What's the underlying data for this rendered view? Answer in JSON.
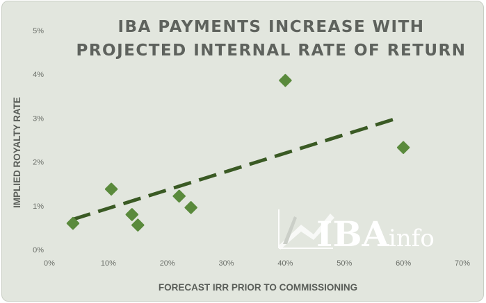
{
  "chart_data": {
    "type": "scatter",
    "title_lines": [
      "IBA PAYMENTS INCREASE WITH",
      "PROJECTED INTERNAL RATE OF RETURN"
    ],
    "xlabel": "FORECAST IRR PRIOR TO COMMISSIONING",
    "ylabel": "IMPLIED ROYALTY RATE",
    "xlim": [
      0,
      70
    ],
    "ylim": [
      0,
      5
    ],
    "x_ticks": [
      0,
      10,
      20,
      30,
      40,
      50,
      60,
      70
    ],
    "x_tick_labels": [
      "0%",
      "10%",
      "20%",
      "30%",
      "40%",
      "50%",
      "60%",
      "70%"
    ],
    "y_ticks": [
      0,
      1,
      2,
      3,
      4,
      5
    ],
    "y_tick_labels": [
      "0%",
      "1%",
      "2%",
      "3%",
      "4%",
      "5%"
    ],
    "points": [
      {
        "x": 4,
        "y": 0.6
      },
      {
        "x": 10.5,
        "y": 1.38
      },
      {
        "x": 14,
        "y": 0.8
      },
      {
        "x": 15,
        "y": 0.56
      },
      {
        "x": 22,
        "y": 1.22
      },
      {
        "x": 24,
        "y": 0.96
      },
      {
        "x": 40,
        "y": 3.86
      },
      {
        "x": 60,
        "y": 2.33
      }
    ],
    "trendline": {
      "x": [
        4,
        59
      ],
      "y": [
        0.69,
        3.0
      ],
      "style": "dashed"
    },
    "grid": false,
    "legend": "none",
    "colors": {
      "marker": "#5a8a3c",
      "trendline": "#3a5a24",
      "background": "#e2e6de",
      "title": "#5e625d"
    }
  },
  "logo": {
    "brand": "IBA",
    "suffix": "info"
  }
}
